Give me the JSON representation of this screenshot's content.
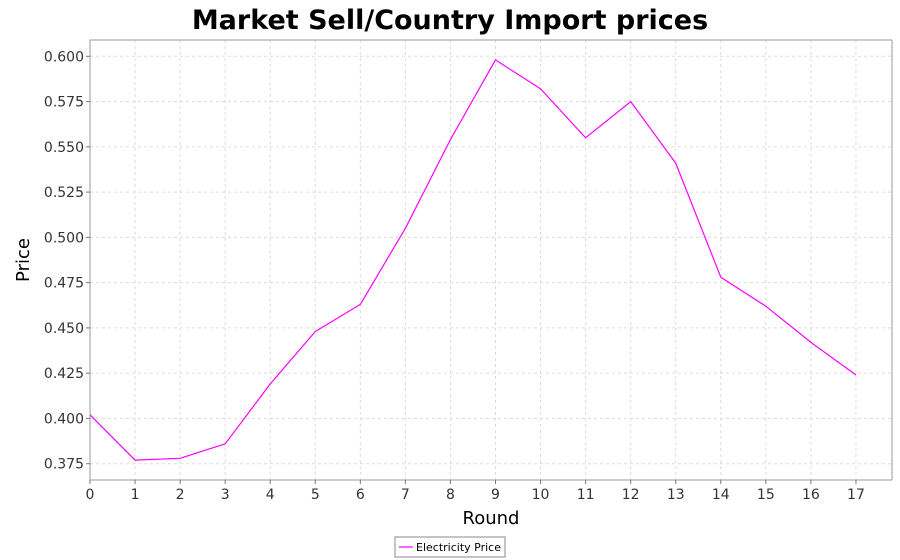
{
  "chart_data": {
    "type": "line",
    "title": "Market Sell/Country Import prices",
    "xlabel": "Round",
    "ylabel": "Price",
    "x": [
      0,
      1,
      2,
      3,
      4,
      5,
      6,
      7,
      8,
      9,
      10,
      11,
      12,
      13,
      14,
      15,
      16,
      17
    ],
    "xlim": [
      0,
      17.8
    ],
    "ylim": [
      0.366,
      0.609
    ],
    "x_ticks": [
      0,
      1,
      2,
      3,
      4,
      5,
      6,
      7,
      8,
      9,
      10,
      11,
      12,
      13,
      14,
      15,
      16,
      17
    ],
    "y_ticks": [
      0.375,
      0.4,
      0.425,
      0.45,
      0.475,
      0.5,
      0.525,
      0.55,
      0.575,
      0.6
    ],
    "y_tick_labels": [
      "0.375",
      "0.400",
      "0.425",
      "0.450",
      "0.475",
      "0.500",
      "0.525",
      "0.550",
      "0.575",
      "0.600"
    ],
    "grid": true,
    "legend_position": "bottom-center",
    "series": [
      {
        "name": "Electricity Price",
        "color": "#ff00ff",
        "values": [
          0.402,
          0.377,
          0.378,
          0.386,
          0.419,
          0.448,
          0.463,
          0.505,
          0.554,
          0.598,
          0.582,
          0.555,
          0.575,
          0.541,
          0.478,
          0.462,
          0.442,
          0.424
        ]
      }
    ]
  }
}
